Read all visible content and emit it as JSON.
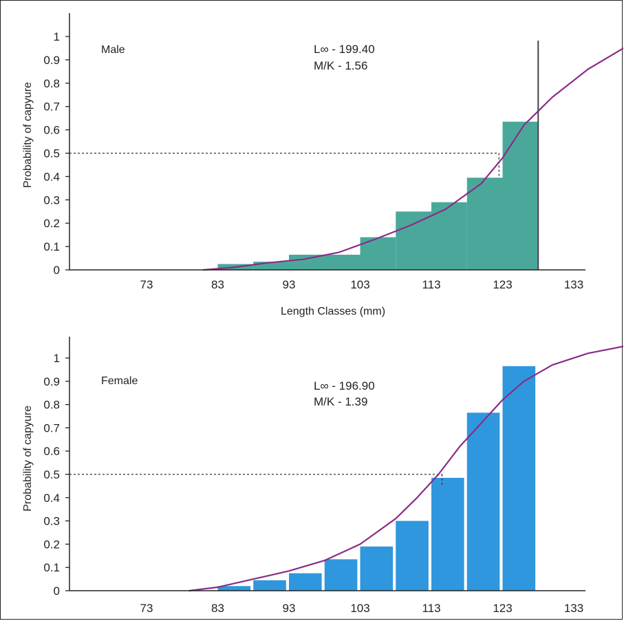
{
  "colors": {
    "male_bar": "#4aa89b",
    "female_bar": "#2f97dd",
    "curve": "#8b2b86",
    "axis": "#222222"
  },
  "chart_data": [
    {
      "type": "bar",
      "panel": "Male",
      "title": "",
      "xlabel": "Length Classes (mm)",
      "ylabel": "Probability of capyure",
      "xlim": [
        63,
        143
      ],
      "ylim": [
        0,
        1.05
      ],
      "x_ticks": [
        73,
        83,
        93,
        103,
        113,
        123,
        133
      ],
      "y_ticks": [
        0,
        0.1,
        0.2,
        0.3,
        0.4,
        0.5,
        0.6,
        0.7,
        0.8,
        0.9,
        1
      ],
      "bars": [
        {
          "x0": 83,
          "x1": 88,
          "value": 0.025
        },
        {
          "x0": 88,
          "x1": 93,
          "value": 0.035
        },
        {
          "x0": 93,
          "x1": 103,
          "value": 0.065
        },
        {
          "x0": 103,
          "x1": 108,
          "value": 0.14
        },
        {
          "x0": 108,
          "x1": 113,
          "value": 0.25
        },
        {
          "x0": 113,
          "x1": 118,
          "value": 0.29
        },
        {
          "x0": 118,
          "x1": 123,
          "value": 0.395
        },
        {
          "x0": 123,
          "x1": 128,
          "value": 0.635
        }
      ],
      "bar_gap": false,
      "vertical_line_x": 128,
      "curve": {
        "x": [
          81,
          85,
          90,
          95,
          100,
          105,
          110,
          115,
          120,
          123,
          126,
          130,
          135,
          140,
          143
        ],
        "y": [
          0.0,
          0.01,
          0.03,
          0.045,
          0.075,
          0.13,
          0.19,
          0.26,
          0.37,
          0.48,
          0.62,
          0.74,
          0.86,
          0.95,
          1.02
        ]
      },
      "l50": {
        "x": 122.5,
        "y": 0.5
      },
      "annotation": {
        "panel_label": "Male",
        "linf": "L∞ - 199.40",
        "mk": "M/K - 1.56"
      }
    },
    {
      "type": "bar",
      "panel": "Female",
      "title": "",
      "xlabel": "",
      "ylabel": "Probability of capyure",
      "xlim": [
        63,
        143
      ],
      "ylim": [
        0,
        1.05
      ],
      "x_ticks": [
        73,
        83,
        93,
        103,
        113,
        123,
        133
      ],
      "y_ticks": [
        0,
        0.1,
        0.2,
        0.3,
        0.4,
        0.5,
        0.6,
        0.7,
        0.8,
        0.9,
        1
      ],
      "bars": [
        {
          "x0": 83,
          "x1": 87.6,
          "value": 0.02
        },
        {
          "x0": 88,
          "x1": 92.6,
          "value": 0.045
        },
        {
          "x0": 93,
          "x1": 97.6,
          "value": 0.075
        },
        {
          "x0": 98,
          "x1": 102.6,
          "value": 0.135
        },
        {
          "x0": 103,
          "x1": 107.6,
          "value": 0.19
        },
        {
          "x0": 108,
          "x1": 112.6,
          "value": 0.3
        },
        {
          "x0": 113,
          "x1": 117.6,
          "value": 0.485
        },
        {
          "x0": 118,
          "x1": 122.6,
          "value": 0.765
        },
        {
          "x0": 123,
          "x1": 127.6,
          "value": 0.965
        }
      ],
      "bar_gap": true,
      "curve": {
        "x": [
          79,
          83,
          88,
          93,
          98,
          103,
          108,
          111,
          114,
          117,
          120,
          123,
          126,
          130,
          135,
          140
        ],
        "y": [
          0.0,
          0.015,
          0.05,
          0.085,
          0.13,
          0.2,
          0.31,
          0.4,
          0.5,
          0.62,
          0.72,
          0.82,
          0.9,
          0.97,
          1.02,
          1.05
        ]
      },
      "l50": {
        "x": 114.5,
        "y": 0.5
      },
      "annotation": {
        "panel_label": "Female",
        "linf": "L∞ - 196.90",
        "mk": "M/K - 1.39"
      }
    }
  ]
}
